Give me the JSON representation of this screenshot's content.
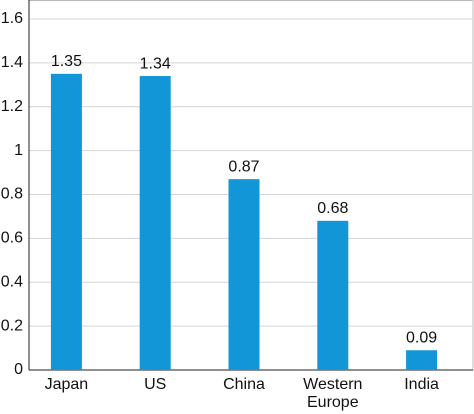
{
  "chart_data": {
    "type": "bar",
    "categories": [
      "Japan",
      "US",
      "China",
      "Western Europe",
      "India"
    ],
    "values": [
      1.35,
      1.34,
      0.87,
      0.68,
      0.09
    ],
    "color": "#1296d8",
    "ylim": [
      0,
      1.6
    ],
    "yticks": [
      0,
      0.2,
      0.4,
      0.6,
      0.8,
      1,
      1.2,
      1.4,
      1.6
    ],
    "grid": true
  }
}
